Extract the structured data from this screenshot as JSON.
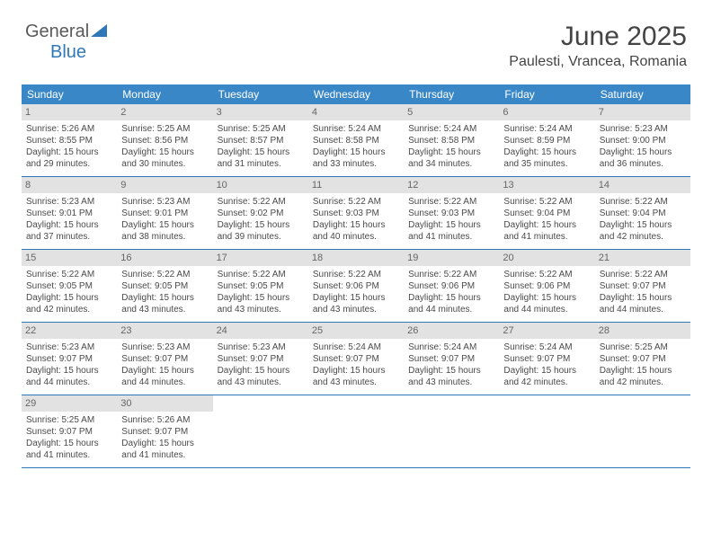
{
  "logo": {
    "part1": "General",
    "part2": "Blue"
  },
  "header": {
    "title": "June 2025",
    "location": "Paulesti, Vrancea, Romania"
  },
  "colors": {
    "header_bg": "#3a87c8",
    "daynum_bg": "#e2e2e2",
    "row_border": "#2f78b7",
    "text": "#4a4a4a",
    "logo_blue": "#2f78b7",
    "logo_gray": "#5a5a5a"
  },
  "dow": [
    "Sunday",
    "Monday",
    "Tuesday",
    "Wednesday",
    "Thursday",
    "Friday",
    "Saturday"
  ],
  "weeks": [
    [
      {
        "n": "1",
        "sr": "5:26 AM",
        "ss": "8:55 PM",
        "dl": "15 hours and 29 minutes."
      },
      {
        "n": "2",
        "sr": "5:25 AM",
        "ss": "8:56 PM",
        "dl": "15 hours and 30 minutes."
      },
      {
        "n": "3",
        "sr": "5:25 AM",
        "ss": "8:57 PM",
        "dl": "15 hours and 31 minutes."
      },
      {
        "n": "4",
        "sr": "5:24 AM",
        "ss": "8:58 PM",
        "dl": "15 hours and 33 minutes."
      },
      {
        "n": "5",
        "sr": "5:24 AM",
        "ss": "8:58 PM",
        "dl": "15 hours and 34 minutes."
      },
      {
        "n": "6",
        "sr": "5:24 AM",
        "ss": "8:59 PM",
        "dl": "15 hours and 35 minutes."
      },
      {
        "n": "7",
        "sr": "5:23 AM",
        "ss": "9:00 PM",
        "dl": "15 hours and 36 minutes."
      }
    ],
    [
      {
        "n": "8",
        "sr": "5:23 AM",
        "ss": "9:01 PM",
        "dl": "15 hours and 37 minutes."
      },
      {
        "n": "9",
        "sr": "5:23 AM",
        "ss": "9:01 PM",
        "dl": "15 hours and 38 minutes."
      },
      {
        "n": "10",
        "sr": "5:22 AM",
        "ss": "9:02 PM",
        "dl": "15 hours and 39 minutes."
      },
      {
        "n": "11",
        "sr": "5:22 AM",
        "ss": "9:03 PM",
        "dl": "15 hours and 40 minutes."
      },
      {
        "n": "12",
        "sr": "5:22 AM",
        "ss": "9:03 PM",
        "dl": "15 hours and 41 minutes."
      },
      {
        "n": "13",
        "sr": "5:22 AM",
        "ss": "9:04 PM",
        "dl": "15 hours and 41 minutes."
      },
      {
        "n": "14",
        "sr": "5:22 AM",
        "ss": "9:04 PM",
        "dl": "15 hours and 42 minutes."
      }
    ],
    [
      {
        "n": "15",
        "sr": "5:22 AM",
        "ss": "9:05 PM",
        "dl": "15 hours and 42 minutes."
      },
      {
        "n": "16",
        "sr": "5:22 AM",
        "ss": "9:05 PM",
        "dl": "15 hours and 43 minutes."
      },
      {
        "n": "17",
        "sr": "5:22 AM",
        "ss": "9:05 PM",
        "dl": "15 hours and 43 minutes."
      },
      {
        "n": "18",
        "sr": "5:22 AM",
        "ss": "9:06 PM",
        "dl": "15 hours and 43 minutes."
      },
      {
        "n": "19",
        "sr": "5:22 AM",
        "ss": "9:06 PM",
        "dl": "15 hours and 44 minutes."
      },
      {
        "n": "20",
        "sr": "5:22 AM",
        "ss": "9:06 PM",
        "dl": "15 hours and 44 minutes."
      },
      {
        "n": "21",
        "sr": "5:22 AM",
        "ss": "9:07 PM",
        "dl": "15 hours and 44 minutes."
      }
    ],
    [
      {
        "n": "22",
        "sr": "5:23 AM",
        "ss": "9:07 PM",
        "dl": "15 hours and 44 minutes."
      },
      {
        "n": "23",
        "sr": "5:23 AM",
        "ss": "9:07 PM",
        "dl": "15 hours and 44 minutes."
      },
      {
        "n": "24",
        "sr": "5:23 AM",
        "ss": "9:07 PM",
        "dl": "15 hours and 43 minutes."
      },
      {
        "n": "25",
        "sr": "5:24 AM",
        "ss": "9:07 PM",
        "dl": "15 hours and 43 minutes."
      },
      {
        "n": "26",
        "sr": "5:24 AM",
        "ss": "9:07 PM",
        "dl": "15 hours and 43 minutes."
      },
      {
        "n": "27",
        "sr": "5:24 AM",
        "ss": "9:07 PM",
        "dl": "15 hours and 42 minutes."
      },
      {
        "n": "28",
        "sr": "5:25 AM",
        "ss": "9:07 PM",
        "dl": "15 hours and 42 minutes."
      }
    ],
    [
      {
        "n": "29",
        "sr": "5:25 AM",
        "ss": "9:07 PM",
        "dl": "15 hours and 41 minutes."
      },
      {
        "n": "30",
        "sr": "5:26 AM",
        "ss": "9:07 PM",
        "dl": "15 hours and 41 minutes."
      },
      null,
      null,
      null,
      null,
      null
    ]
  ],
  "labels": {
    "sunrise": "Sunrise:",
    "sunset": "Sunset:",
    "daylight": "Daylight:"
  }
}
